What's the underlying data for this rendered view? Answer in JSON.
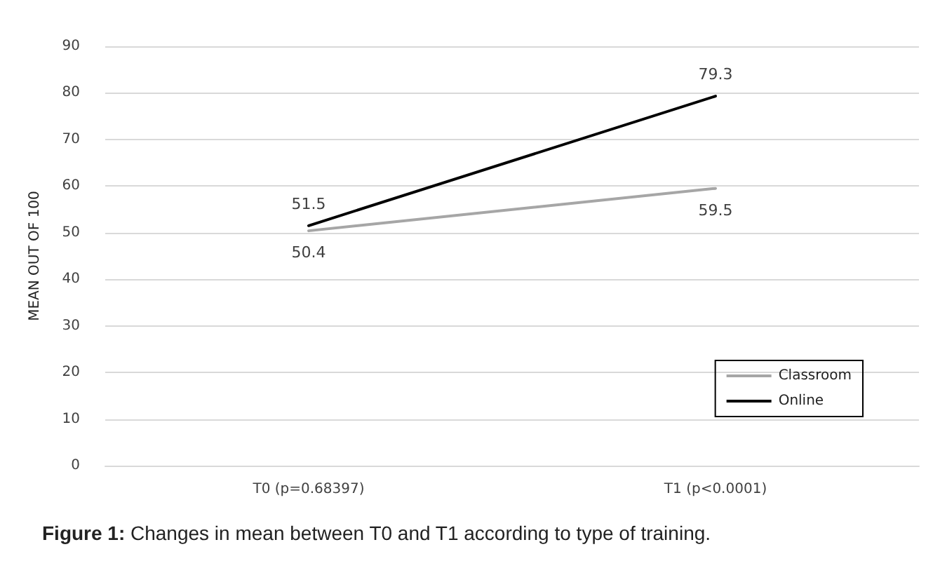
{
  "chart_data": {
    "type": "line",
    "ylabel": "MEAN OUT OF 100",
    "categories": [
      "T0 (p=0.68397)",
      "T1 (p<0.0001)"
    ],
    "series": [
      {
        "name": "Classroom",
        "color": "#a6a6a6",
        "values": [
          50.4,
          59.5
        ]
      },
      {
        "name": "Online",
        "color": "#000000",
        "values": [
          51.5,
          79.3
        ]
      }
    ],
    "ylim": [
      0,
      90
    ],
    "yticks": [
      0,
      10,
      20,
      30,
      40,
      50,
      60,
      70,
      80,
      90
    ],
    "grid": "y",
    "legend": "bottom right",
    "marker": "none",
    "line_style": "solid",
    "data_labels": true,
    "annotations": [
      "Figure 1: Changes in mean between T0 and T1 according to type of training."
    ]
  }
}
